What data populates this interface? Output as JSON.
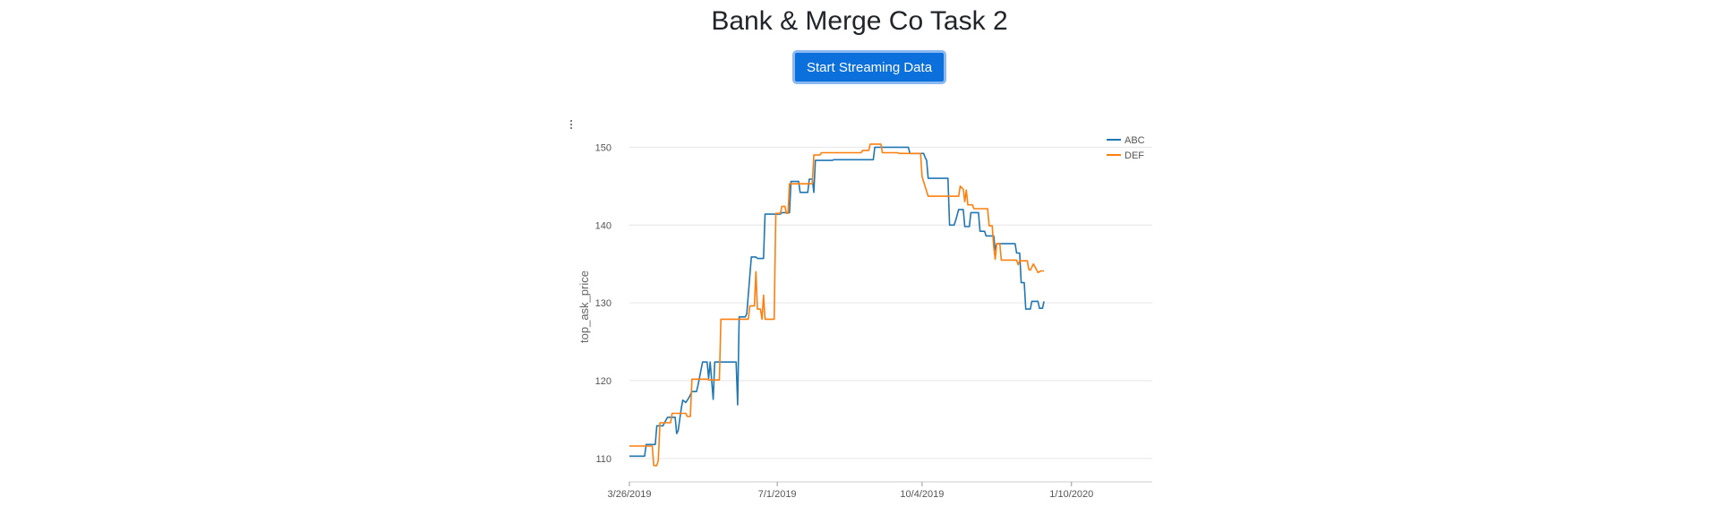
{
  "page": {
    "title": "Bank & Merge Co Task 2",
    "stream_button_label": "Start Streaming Data",
    "chart_menu_icon": "vertical-ellipsis-icon"
  },
  "chart_data": {
    "type": "line",
    "ylabel": "top_ask_price",
    "xlabel": "",
    "ylim": [
      107,
      152
    ],
    "yticks": [
      110,
      120,
      130,
      140,
      150
    ],
    "xticks": [
      "3/26/2019",
      "7/1/2019",
      "10/4/2019",
      "1/10/2020"
    ],
    "x_range": [
      "2019-03-26",
      "2020-03-03"
    ],
    "grid": "horizontal",
    "legend_position": "top-right",
    "series": [
      {
        "name": "ABC",
        "color": "#1f77b4",
        "points": [
          [
            "2019-03-26",
            110.3
          ],
          [
            "2019-04-05",
            110.3
          ],
          [
            "2019-04-06",
            111.8
          ],
          [
            "2019-04-12",
            111.8
          ],
          [
            "2019-04-13",
            114.2
          ],
          [
            "2019-04-17",
            114.2
          ],
          [
            "2019-04-18",
            114.6
          ],
          [
            "2019-04-20",
            115.3
          ],
          [
            "2019-04-25",
            115.3
          ],
          [
            "2019-04-26",
            113.2
          ],
          [
            "2019-04-27",
            113.6
          ],
          [
            "2019-04-29",
            116.4
          ],
          [
            "2019-04-30",
            117.5
          ],
          [
            "2019-05-02",
            117.2
          ],
          [
            "2019-05-04",
            117.8
          ],
          [
            "2019-05-06",
            118.6
          ],
          [
            "2019-05-09",
            118.6
          ],
          [
            "2019-05-10",
            119.4
          ],
          [
            "2019-05-13",
            122.4
          ],
          [
            "2019-05-16",
            122.4
          ],
          [
            "2019-05-17",
            120.3
          ],
          [
            "2019-05-18",
            122.4
          ],
          [
            "2019-05-20",
            117.6
          ],
          [
            "2019-05-21",
            122.4
          ],
          [
            "2019-06-04",
            122.4
          ],
          [
            "2019-06-05",
            116.9
          ],
          [
            "2019-06-06",
            128.2
          ],
          [
            "2019-06-10",
            128.2
          ],
          [
            "2019-06-11",
            128.6
          ],
          [
            "2019-06-14",
            135.9
          ],
          [
            "2019-06-17",
            135.9
          ],
          [
            "2019-06-18",
            135.7
          ],
          [
            "2019-06-22",
            135.7
          ],
          [
            "2019-06-23",
            141.4
          ],
          [
            "2019-07-03",
            141.4
          ],
          [
            "2019-07-04",
            141.6
          ],
          [
            "2019-07-09",
            141.6
          ],
          [
            "2019-07-10",
            145.6
          ],
          [
            "2019-07-15",
            145.6
          ],
          [
            "2019-07-16",
            144.2
          ],
          [
            "2019-07-21",
            144.2
          ],
          [
            "2019-07-22",
            145.9
          ],
          [
            "2019-07-24",
            145.9
          ],
          [
            "2019-07-25",
            144.2
          ],
          [
            "2019-07-26",
            148.3
          ],
          [
            "2019-08-06",
            148.3
          ],
          [
            "2019-08-07",
            148.4
          ],
          [
            "2019-09-02",
            148.4
          ],
          [
            "2019-09-03",
            150.0
          ],
          [
            "2019-09-25",
            150.0
          ],
          [
            "2019-09-26",
            149.2
          ],
          [
            "2019-10-05",
            149.2
          ],
          [
            "2019-10-06",
            148.7
          ],
          [
            "2019-10-07",
            148.3
          ],
          [
            "2019-10-08",
            146.0
          ],
          [
            "2019-10-21",
            146.0
          ],
          [
            "2019-10-22",
            140.0
          ],
          [
            "2019-10-25",
            140.0
          ],
          [
            "2019-10-26",
            140.6
          ],
          [
            "2019-10-28",
            142.0
          ],
          [
            "2019-10-31",
            142.0
          ],
          [
            "2019-11-01",
            139.8
          ],
          [
            "2019-11-04",
            139.8
          ],
          [
            "2019-11-05",
            141.6
          ],
          [
            "2019-11-10",
            141.6
          ],
          [
            "2019-11-11",
            139.2
          ],
          [
            "2019-11-14",
            139.2
          ],
          [
            "2019-11-15",
            138.6
          ],
          [
            "2019-11-20",
            138.6
          ],
          [
            "2019-11-21",
            136.8
          ],
          [
            "2019-11-22",
            137.6
          ],
          [
            "2019-12-04",
            137.6
          ],
          [
            "2019-12-05",
            136.4
          ],
          [
            "2019-12-07",
            136.4
          ],
          [
            "2019-12-08",
            132.6
          ],
          [
            "2019-12-10",
            132.6
          ],
          [
            "2019-12-11",
            129.2
          ],
          [
            "2019-12-14",
            129.2
          ],
          [
            "2019-12-15",
            130.2
          ],
          [
            "2019-12-19",
            130.2
          ],
          [
            "2019-12-20",
            129.3
          ],
          [
            "2019-12-22",
            129.3
          ],
          [
            "2019-12-23",
            130.2
          ]
        ]
      },
      {
        "name": "DEF",
        "color": "#ff7f0e",
        "points": [
          [
            "2019-03-26",
            111.6
          ],
          [
            "2019-04-10",
            111.6
          ],
          [
            "2019-04-11",
            109.1
          ],
          [
            "2019-04-13",
            109.1
          ],
          [
            "2019-04-14",
            109.8
          ],
          [
            "2019-04-15",
            114.6
          ],
          [
            "2019-04-22",
            114.6
          ],
          [
            "2019-04-23",
            115.8
          ],
          [
            "2019-05-02",
            115.8
          ],
          [
            "2019-05-03",
            115.4
          ],
          [
            "2019-05-05",
            115.4
          ],
          [
            "2019-05-06",
            120.2
          ],
          [
            "2019-05-16",
            120.2
          ],
          [
            "2019-05-17",
            120.1
          ],
          [
            "2019-05-24",
            120.1
          ],
          [
            "2019-05-25",
            127.9
          ],
          [
            "2019-06-12",
            127.9
          ],
          [
            "2019-06-13",
            129.6
          ],
          [
            "2019-06-16",
            129.6
          ],
          [
            "2019-06-17",
            134.0
          ],
          [
            "2019-06-18",
            129.2
          ],
          [
            "2019-06-20",
            129.2
          ],
          [
            "2019-06-21",
            127.9
          ],
          [
            "2019-06-22",
            131.0
          ],
          [
            "2019-06-23",
            127.9
          ],
          [
            "2019-06-29",
            127.9
          ],
          [
            "2019-06-30",
            141.5
          ],
          [
            "2019-07-03",
            141.5
          ],
          [
            "2019-07-04",
            142.4
          ],
          [
            "2019-07-06",
            142.4
          ],
          [
            "2019-07-07",
            141.5
          ],
          [
            "2019-07-08",
            141.5
          ],
          [
            "2019-07-09",
            145.3
          ],
          [
            "2019-07-24",
            145.3
          ],
          [
            "2019-07-25",
            149.0
          ],
          [
            "2019-07-29",
            149.0
          ],
          [
            "2019-07-30",
            149.3
          ],
          [
            "2019-08-25",
            149.3
          ],
          [
            "2019-08-26",
            149.6
          ],
          [
            "2019-08-30",
            149.6
          ],
          [
            "2019-08-31",
            150.4
          ],
          [
            "2019-09-07",
            150.4
          ],
          [
            "2019-09-08",
            149.3
          ],
          [
            "2019-09-18",
            149.3
          ],
          [
            "2019-09-19",
            149.2
          ],
          [
            "2019-10-03",
            149.2
          ],
          [
            "2019-10-04",
            146.2
          ],
          [
            "2019-10-08",
            143.7
          ],
          [
            "2019-10-28",
            143.7
          ],
          [
            "2019-10-29",
            145.0
          ],
          [
            "2019-10-31",
            144.6
          ],
          [
            "2019-11-01",
            143.0
          ],
          [
            "2019-11-02",
            144.5
          ],
          [
            "2019-11-03",
            142.6
          ],
          [
            "2019-11-06",
            142.6
          ],
          [
            "2019-11-07",
            142.1
          ],
          [
            "2019-11-16",
            142.1
          ],
          [
            "2019-11-17",
            139.9
          ],
          [
            "2019-11-19",
            139.9
          ],
          [
            "2019-11-20",
            137.2
          ],
          [
            "2019-11-21",
            135.6
          ],
          [
            "2019-11-22",
            137.6
          ],
          [
            "2019-11-24",
            137.6
          ],
          [
            "2019-11-25",
            135.5
          ],
          [
            "2019-12-05",
            135.5
          ],
          [
            "2019-12-06",
            134.9
          ],
          [
            "2019-12-07",
            135.4
          ],
          [
            "2019-12-12",
            135.4
          ],
          [
            "2019-12-13",
            134.3
          ],
          [
            "2019-12-14",
            134.2
          ],
          [
            "2019-12-16",
            135.0
          ],
          [
            "2019-12-18",
            134.3
          ],
          [
            "2019-12-19",
            133.9
          ],
          [
            "2019-12-21",
            134.1
          ],
          [
            "2019-12-23",
            134.1
          ]
        ]
      }
    ]
  }
}
